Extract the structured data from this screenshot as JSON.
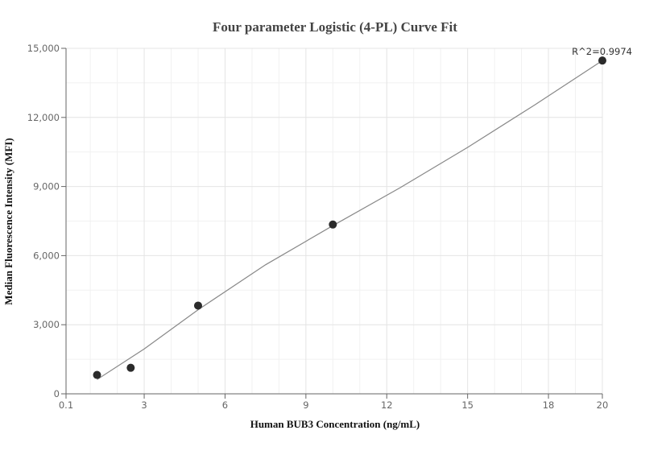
{
  "chart_data": {
    "type": "scatter",
    "title": "Four parameter Logistic (4-PL) Curve Fit",
    "xlabel": "Human BUB3 Concentration (ng/mL)",
    "ylabel": "Median Fluorescence Intensity (MFI)",
    "xlim": [
      0.1,
      20
    ],
    "ylim": [
      0,
      15000
    ],
    "x_ticks": [
      0.1,
      3,
      6,
      9,
      12,
      15,
      18,
      20
    ],
    "x_tick_labels": [
      "0.1",
      "3",
      "6",
      "9",
      "12",
      "15",
      "18",
      "20"
    ],
    "y_ticks": [
      0,
      3000,
      6000,
      9000,
      12000,
      15000
    ],
    "y_tick_labels": [
      "0",
      "3,000",
      "6,000",
      "9,000",
      "12,000",
      "15,000"
    ],
    "grid": true,
    "points": [
      {
        "x": 1.25,
        "y": 820
      },
      {
        "x": 2.5,
        "y": 1130
      },
      {
        "x": 5,
        "y": 3830
      },
      {
        "x": 10,
        "y": 7350
      },
      {
        "x": 20,
        "y": 14470
      }
    ],
    "fit_curve": [
      {
        "x": 1.25,
        "y": 620
      },
      {
        "x": 3,
        "y": 1950
      },
      {
        "x": 5,
        "y": 3650
      },
      {
        "x": 7.5,
        "y": 5600
      },
      {
        "x": 10,
        "y": 7300
      },
      {
        "x": 12.5,
        "y": 8950
      },
      {
        "x": 15,
        "y": 10700
      },
      {
        "x": 17.5,
        "y": 12550
      },
      {
        "x": 20,
        "y": 14470
      }
    ],
    "annotation": "R^2=0.9974"
  }
}
